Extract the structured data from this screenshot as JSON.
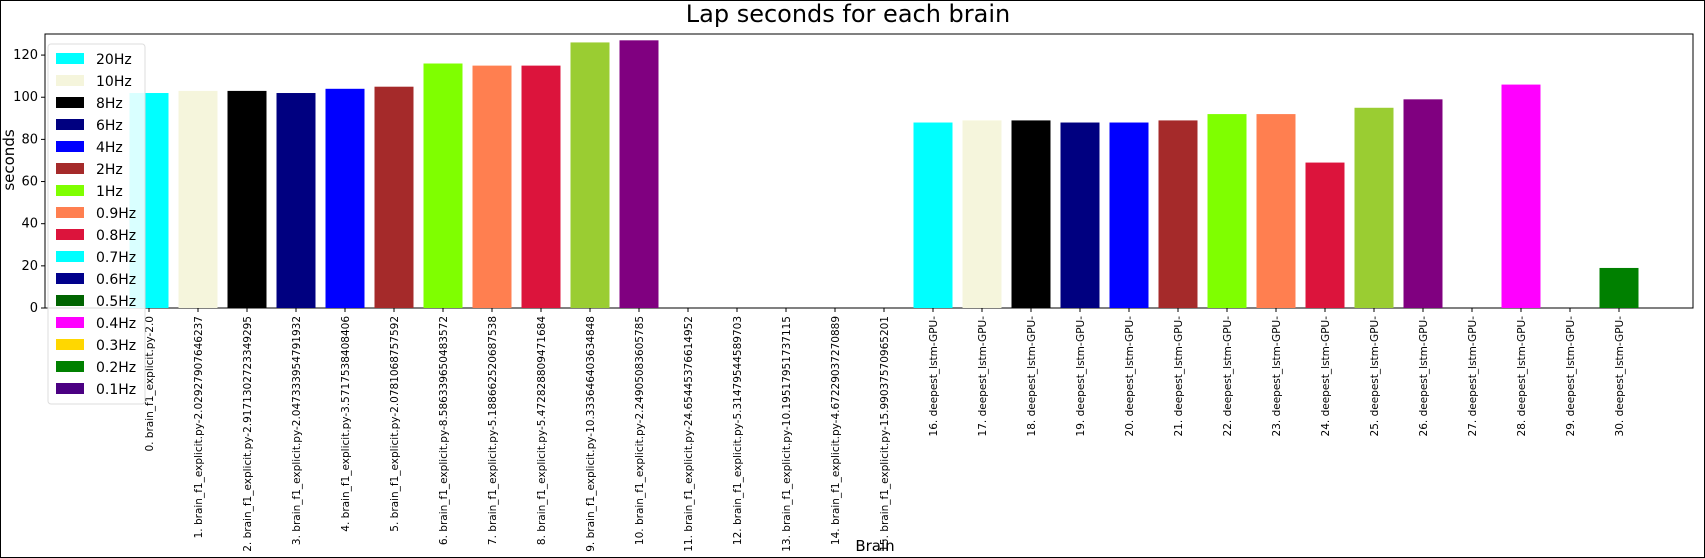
{
  "chart_data": {
    "type": "bar",
    "title": "Lap seconds for each brain",
    "xlabel": "Brain",
    "ylabel": "seconds",
    "ylim": [
      0,
      130
    ],
    "yticks": [
      0,
      20,
      40,
      60,
      80,
      100,
      120
    ],
    "grid": false,
    "legend_position": "top-left",
    "categories": [
      "0. brain_f1_explicit.py-2.0",
      "1. brain_f1_explicit.py-2.02927907646237",
      "2. brain_f1_explicit.py-2.9171302723349295",
      "3. brain_f1_explicit.py-2.047333954791932",
      "4. brain_f1_explicit.py-3.5717538408406",
      "5. brain_f1_explicit.py-2.0781068757592",
      "6. brain_f1_explicit.py-8.586339650483572",
      "7. brain_f1_explicit.py-5.188662520687538",
      "8. brain_f1_explicit.py-5.472828809471684",
      "9. brain_f1_explicit.py-10.333646403634848",
      "10. brain_f1_explicit.py-2.24905083605785",
      "11. brain_f1_explicit.py-24.65445376614952",
      "12. brain_f1_explicit.py-5.31479544589703",
      "13. brain_f1_explicit.py-10.19517951737115",
      "14. brain_f1_explicit.py-4.67229037270889",
      "15. brain_f1_explicit.py-15.99037570965201",
      "16. deepest_lstm-GPU-",
      "17. deepest_lstm-GPU-",
      "18. deepest_lstm-GPU-",
      "19. deepest_lstm-GPU-",
      "20. deepest_lstm-GPU-",
      "21. deepest_lstm-GPU-",
      "22. deepest_lstm-GPU-",
      "23. deepest_lstm-GPU-",
      "24. deepest_lstm-GPU-",
      "25. deepest_lstm-GPU-",
      "26. deepest_lstm-GPU-",
      "27. deepest_lstm-GPU-",
      "28. deepest_lstm-GPU-",
      "29. deepest_lstm-GPU-",
      "30. deepest_lstm-GPU-"
    ],
    "values": [
      102,
      103,
      103,
      102,
      104,
      105,
      116,
      115,
      115,
      126,
      127,
      0,
      0,
      0,
      0,
      0,
      88,
      89,
      89,
      88,
      88,
      89,
      92,
      92,
      69,
      95,
      99,
      0,
      106,
      0,
      19
    ],
    "bar_colors": [
      "#00ffff",
      "#f5f5dc",
      "#000000",
      "#000080",
      "#0000ff",
      "#a52a2a",
      "#7fff00",
      "#ff7f50",
      "#dc143c",
      "#9acd32",
      "#800080",
      "#00ffff",
      "#00008b",
      "#006400",
      "#ff00ff",
      "#ffd700",
      "#00ffff",
      "#f5f5dc",
      "#000000",
      "#000080",
      "#0000ff",
      "#a52a2a",
      "#7fff00",
      "#ff7f50",
      "#dc143c",
      "#9acd32",
      "#800080",
      "#00ffff",
      "#ff00ff",
      "#ffd700",
      "#008000"
    ],
    "legend": [
      {
        "label": "20Hz",
        "color": "#00ffff"
      },
      {
        "label": "10Hz",
        "color": "#f5f5dc"
      },
      {
        "label": "8Hz",
        "color": "#000000"
      },
      {
        "label": "6Hz",
        "color": "#000080"
      },
      {
        "label": "4Hz",
        "color": "#0000ff"
      },
      {
        "label": "2Hz",
        "color": "#a52a2a"
      },
      {
        "label": "1Hz",
        "color": "#7fff00"
      },
      {
        "label": "0.9Hz",
        "color": "#ff7f50"
      },
      {
        "label": "0.8Hz",
        "color": "#dc143c"
      },
      {
        "label": "0.7Hz",
        "color": "#00ffff"
      },
      {
        "label": "0.6Hz",
        "color": "#00008b"
      },
      {
        "label": "0.5Hz",
        "color": "#006400"
      },
      {
        "label": "0.4Hz",
        "color": "#ff00ff"
      },
      {
        "label": "0.3Hz",
        "color": "#ffd700"
      },
      {
        "label": "0.2Hz",
        "color": "#008000"
      },
      {
        "label": "0.1Hz",
        "color": "#4b0082"
      }
    ]
  }
}
